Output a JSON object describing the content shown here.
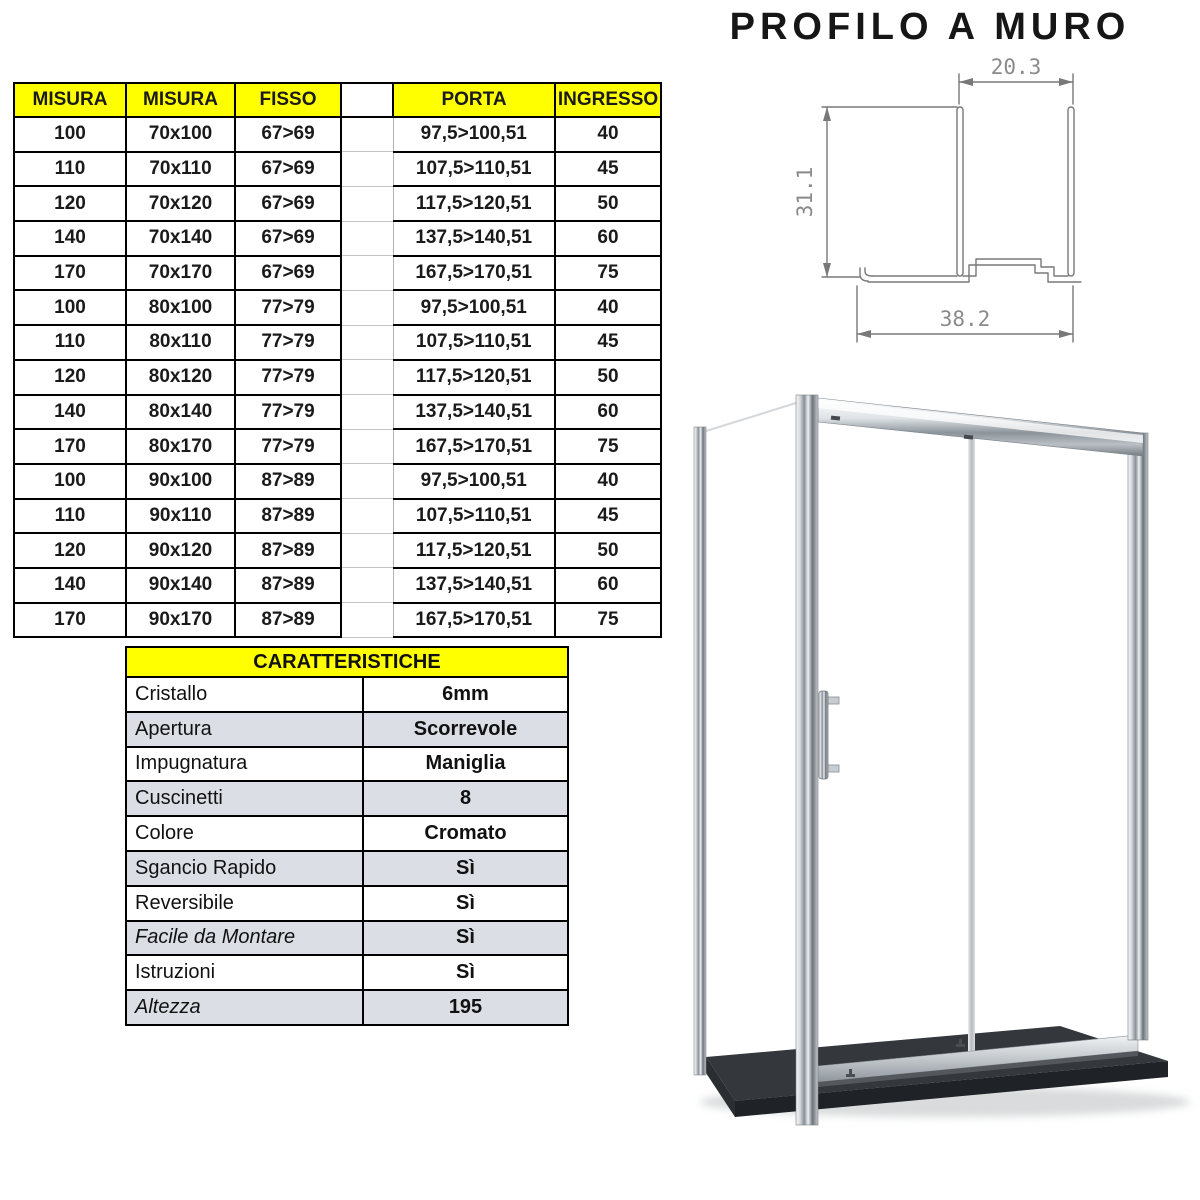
{
  "title": "PROFILO A MURO",
  "size_table": {
    "headers": [
      "MISURA",
      "MISURA",
      "FISSO",
      "",
      "PORTA",
      "INGRESSO"
    ],
    "rows": [
      [
        "100",
        "70x100",
        "67>69",
        "",
        "97,5>100,51",
        "40"
      ],
      [
        "110",
        "70x110",
        "67>69",
        "",
        "107,5>110,51",
        "45"
      ],
      [
        "120",
        "70x120",
        "67>69",
        "",
        "117,5>120,51",
        "50"
      ],
      [
        "140",
        "70x140",
        "67>69",
        "",
        "137,5>140,51",
        "60"
      ],
      [
        "170",
        "70x170",
        "67>69",
        "",
        "167,5>170,51",
        "75"
      ],
      [
        "100",
        "80x100",
        "77>79",
        "",
        "97,5>100,51",
        "40"
      ],
      [
        "110",
        "80x110",
        "77>79",
        "",
        "107,5>110,51",
        "45"
      ],
      [
        "120",
        "80x120",
        "77>79",
        "",
        "117,5>120,51",
        "50"
      ],
      [
        "140",
        "80x140",
        "77>79",
        "",
        "137,5>140,51",
        "60"
      ],
      [
        "170",
        "80x170",
        "77>79",
        "",
        "167,5>170,51",
        "75"
      ],
      [
        "100",
        "90x100",
        "87>89",
        "",
        "97,5>100,51",
        "40"
      ],
      [
        "110",
        "90x110",
        "87>89",
        "",
        "107,5>110,51",
        "45"
      ],
      [
        "120",
        "90x120",
        "87>89",
        "",
        "117,5>120,51",
        "50"
      ],
      [
        "140",
        "90x140",
        "87>89",
        "",
        "137,5>140,51",
        "60"
      ],
      [
        "170",
        "90x170",
        "87>89",
        "",
        "167,5>170,51",
        "75"
      ]
    ]
  },
  "features_table": {
    "title": "CARATTERISTICHE",
    "rows": [
      {
        "label": "Cristallo",
        "value": "6mm",
        "italic": false
      },
      {
        "label": "Apertura",
        "value": "Scorrevole",
        "italic": false
      },
      {
        "label": "Impugnatura",
        "value": "Maniglia",
        "italic": false
      },
      {
        "label": "Cuscinetti",
        "value": "8",
        "italic": false
      },
      {
        "label": "Colore",
        "value": "Cromato",
        "italic": false
      },
      {
        "label": "Sgancio Rapido",
        "value": "Sì",
        "italic": false
      },
      {
        "label": "Reversibile",
        "value": "Sì",
        "italic": false
      },
      {
        "label": "Facile da Montare",
        "value": "Sì",
        "italic": true
      },
      {
        "label": "Istruzioni",
        "value": "Sì",
        "italic": false
      },
      {
        "label": "Altezza",
        "value": "195",
        "italic": true
      }
    ]
  },
  "profile_drawing": {
    "dim_top": "20.3",
    "dim_left": "31.1",
    "dim_bottom": "38.2"
  },
  "colors": {
    "table_header_bg": "#ffff00",
    "features_stripe_bg": "#dbdfe5",
    "drawing_line": "#787878",
    "drawing_text": "#8a8a8a",
    "tray_top": "#34373c",
    "tray_front": "#1f2226",
    "chrome_mid": "#9aa1a7"
  }
}
